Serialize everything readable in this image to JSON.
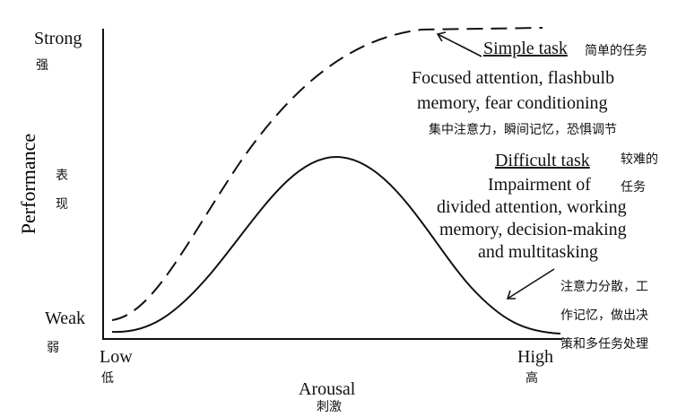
{
  "y_axis": {
    "title": "Performance",
    "title_zh": [
      "表",
      "现"
    ],
    "top_label": "Strong",
    "top_label_zh": "强",
    "bottom_label": "Weak",
    "bottom_label_zh": "弱"
  },
  "x_axis": {
    "title": "Arousal",
    "title_zh": "刺激",
    "left_label": "Low",
    "left_label_zh": "低",
    "right_label": "High",
    "right_label_zh": "高"
  },
  "simple_task": {
    "label": "Simple task",
    "label_zh": "简单的任务",
    "desc_line1": "Focused attention, flashbulb",
    "desc_line2": "memory, fear conditioning",
    "desc_zh": "集中注意力，瞬间记忆，恐惧调节",
    "curve_style": "dashed"
  },
  "difficult_task": {
    "label": "Difficult task",
    "label_zh_line1": "较难的",
    "label_zh_line2": "任务",
    "desc_line1": "Impairment of",
    "desc_line2": "divided attention, working",
    "desc_line3": "memory, decision-making",
    "desc_line4": "and multitasking",
    "desc_zh_line1": "注意力分散，工",
    "desc_zh_line2": "作记忆，做出决",
    "desc_zh_line3": "策和多任务处理",
    "curve_style": "solid"
  },
  "colors": {
    "ink": "#111111",
    "background": "#ffffff"
  }
}
